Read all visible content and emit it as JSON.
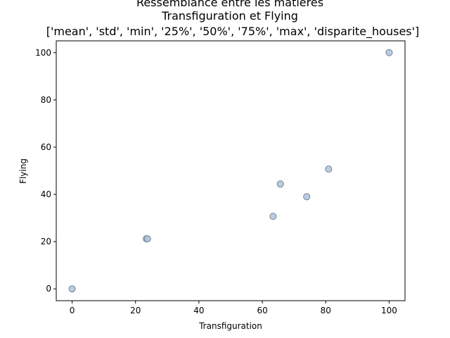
{
  "chart_data": {
    "type": "scatter",
    "title_lines": [
      "Ressemblance entre les matières",
      "Transfiguration et Flying",
      "['mean', 'std', 'min', '25%', '50%', '75%', 'max', 'disparite_houses']"
    ],
    "xlabel": "Transfiguration",
    "ylabel": "Flying",
    "xlim": [
      -5,
      105
    ],
    "ylim": [
      -5,
      105
    ],
    "xticks": [
      0,
      20,
      40,
      60,
      80,
      100
    ],
    "yticks": [
      0,
      20,
      40,
      60,
      80,
      100
    ],
    "grid": false,
    "legend": null,
    "marker_color": "#b0c4de",
    "marker_edge_color": "#708090",
    "points": [
      {
        "x": 0,
        "y": 0
      },
      {
        "x": 23.4,
        "y": 21.2
      },
      {
        "x": 23.8,
        "y": 21.2
      },
      {
        "x": 63.4,
        "y": 30.7
      },
      {
        "x": 65.7,
        "y": 44.4
      },
      {
        "x": 74.0,
        "y": 39.0
      },
      {
        "x": 80.9,
        "y": 50.7
      },
      {
        "x": 100,
        "y": 100
      }
    ]
  }
}
